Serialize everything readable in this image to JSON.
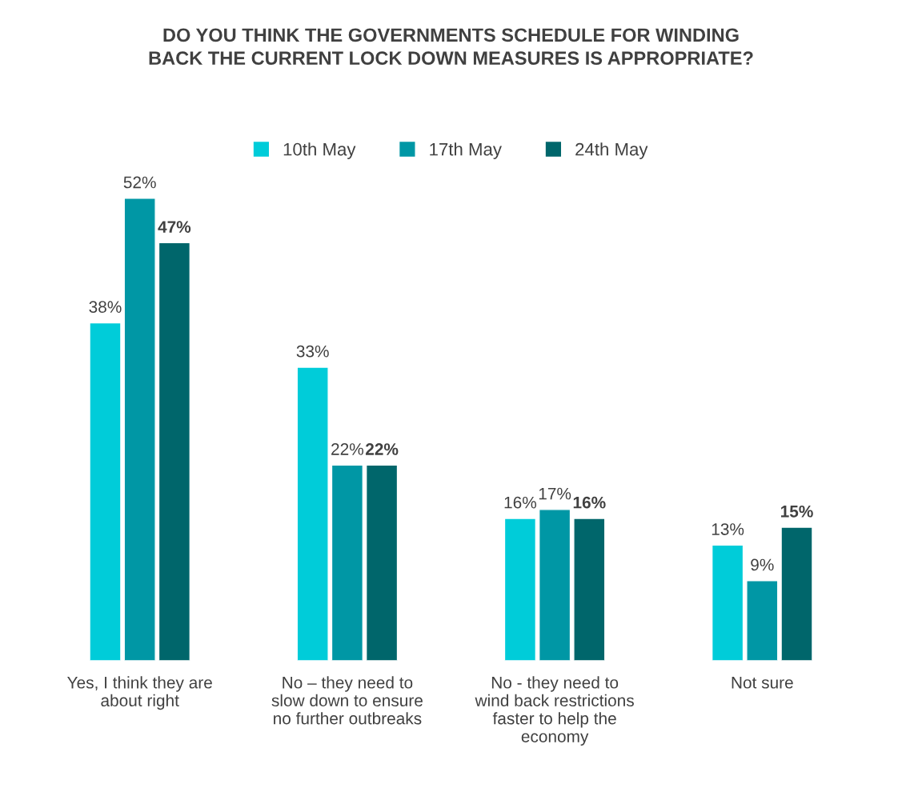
{
  "chart_data": {
    "type": "bar",
    "title": "DO YOU THINK THE GOVERNMENTS SCHEDULE FOR WINDING\nBACK THE CURRENT LOCK DOWN MEASURES IS APPROPRIATE?",
    "categories": [
      "Yes, I think they are\nabout right",
      "No – they need to\nslow down to ensure\nno further outbreaks",
      "No - they need to\nwind back restrictions\nfaster to help the\neconomy",
      "Not sure"
    ],
    "series": [
      {
        "name": "10th May",
        "color": "#00ccd9",
        "values": [
          38,
          33,
          16,
          13
        ],
        "value_labels": [
          "38%",
          "33%",
          "16%",
          "13%"
        ]
      },
      {
        "name": "17th May",
        "color": "#0097a5",
        "values": [
          52,
          22,
          17,
          9
        ],
        "value_labels": [
          "52%",
          "22%",
          "17%",
          "9%"
        ]
      },
      {
        "name": "24th May",
        "color": "#00666b",
        "values": [
          47,
          22,
          16,
          15
        ],
        "value_labels": [
          "47%",
          "22%",
          "16%",
          "15%"
        ]
      }
    ],
    "legend": "top",
    "grid": false
  }
}
